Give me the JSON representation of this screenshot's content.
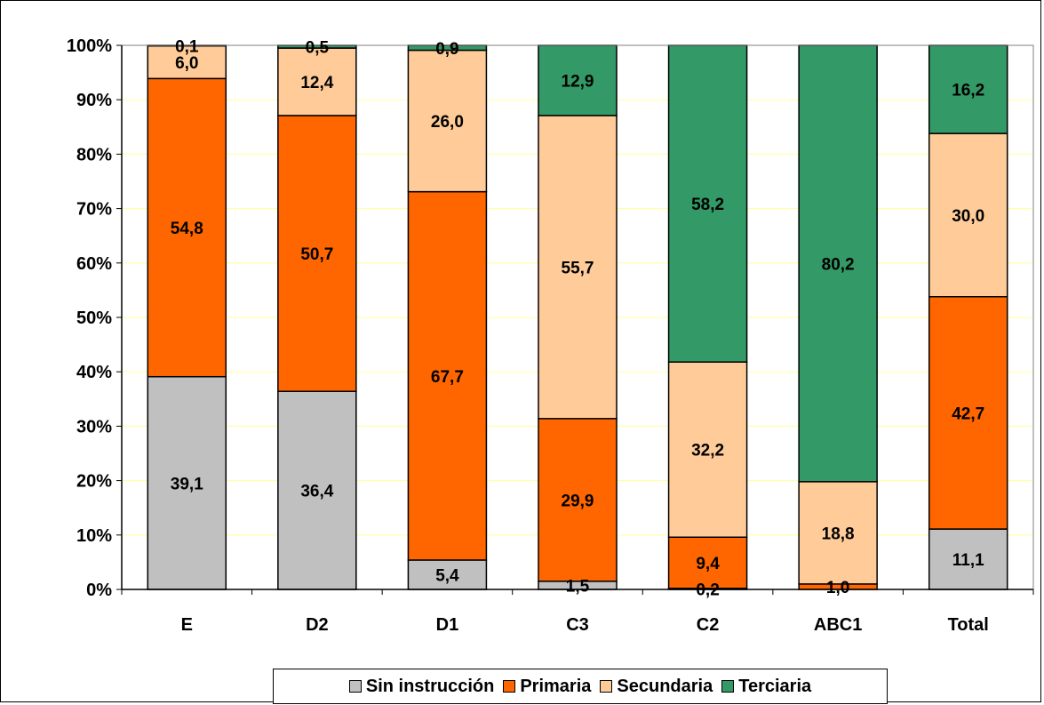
{
  "chart_data": {
    "type": "bar",
    "stacked": true,
    "percent_stacked": true,
    "categories": [
      "E",
      "D2",
      "D1",
      "C3",
      "C2",
      "ABC1",
      "Total"
    ],
    "series": [
      {
        "name": "Sin instrucción",
        "color": "#c0c0c0",
        "values": [
          39.1,
          36.4,
          5.4,
          1.5,
          0.2,
          0.0,
          11.1
        ],
        "labels": [
          "39,1",
          "36,4",
          "5,4",
          "1,5",
          "0,2",
          "",
          "11,1"
        ]
      },
      {
        "name": "Primaria",
        "color": "#ff6600",
        "values": [
          54.8,
          50.7,
          67.7,
          29.9,
          9.4,
          1.0,
          42.7
        ],
        "labels": [
          "54,8",
          "50,7",
          "67,7",
          "29,9",
          "9,4",
          "1,0",
          "42,7"
        ]
      },
      {
        "name": "Secundaria",
        "color": "#ffcc99",
        "values": [
          6.0,
          12.4,
          26.0,
          55.7,
          32.2,
          18.8,
          30.0
        ],
        "labels": [
          "6,0",
          "12,4",
          "26,0",
          "55,7",
          "32,2",
          "18,8",
          "30,0"
        ]
      },
      {
        "name": "Terciaria",
        "color": "#339966",
        "values": [
          0.1,
          0.5,
          0.9,
          12.9,
          58.2,
          80.2,
          16.2
        ],
        "labels": [
          "0,1",
          "0,5",
          "0,9",
          "12,9",
          "58,2",
          "80,2",
          "16,2"
        ]
      }
    ],
    "yticks": [
      "0%",
      "10%",
      "20%",
      "30%",
      "40%",
      "50%",
      "60%",
      "70%",
      "80%",
      "90%",
      "100%"
    ],
    "ylim": [
      0,
      100
    ],
    "grid": true,
    "legend_position": "bottom",
    "title": "",
    "xlabel": "",
    "ylabel": ""
  },
  "colors": {
    "gridline": "#ffff99",
    "axis": "#000000"
  }
}
